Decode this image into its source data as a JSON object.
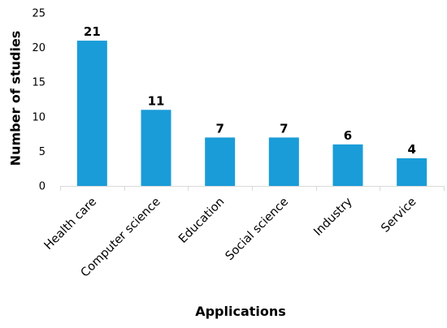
{
  "chart_data": {
    "type": "bar",
    "title": "",
    "xlabel": "Applications",
    "ylabel": "Number of studies",
    "categories": [
      "Health care",
      "Computer science",
      "Education",
      "Social science",
      "Industry",
      "Service"
    ],
    "values": [
      21,
      11,
      7,
      7,
      6,
      4
    ],
    "ylim": [
      0,
      25
    ],
    "yticks": [
      0,
      5,
      10,
      15,
      20,
      25
    ],
    "grid": false,
    "legend": "none",
    "data_labels": true,
    "bar_color": "#1a9cd8",
    "axis_color": "#d9d9d9"
  }
}
